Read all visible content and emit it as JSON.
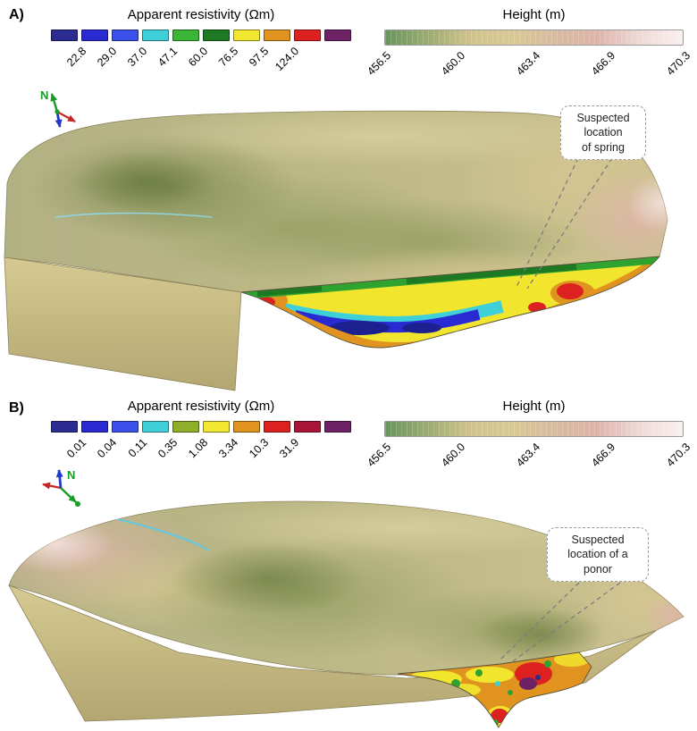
{
  "figure": {
    "panels": [
      {
        "id": "A",
        "label": "A)",
        "compass_label": "N",
        "resistivity_legend": {
          "title": "Apparent resistivity (Ωm)",
          "colors": [
            "#2b2b91",
            "#2a2ad2",
            "#3a50e8",
            "#3ecfd8",
            "#3bb535",
            "#1d7a22",
            "#f2e832",
            "#e0941f",
            "#dd2020",
            "#6e2266"
          ],
          "ticks": [
            "22.8",
            "29.0",
            "37.0",
            "47.1",
            "60.0",
            "76.5",
            "97.5",
            "124.0"
          ]
        },
        "height_legend": {
          "title": "Height (m)",
          "gradient": [
            "#68955e",
            "#9cab72",
            "#cfc28c",
            "#d9c897",
            "#d7bba2",
            "#dcb5ab",
            "#eedad6",
            "#f9f1f0"
          ],
          "ticks": [
            "456.5",
            "460.0",
            "463.4",
            "466.9",
            "470.3"
          ]
        },
        "callout": {
          "lines": [
            "Suspected",
            "location",
            "of spring"
          ]
        }
      },
      {
        "id": "B",
        "label": "B)",
        "compass_label": "N",
        "resistivity_legend": {
          "title": "Apparent resistivity (Ωm)",
          "colors": [
            "#2b2b91",
            "#2a2ad2",
            "#3a50e8",
            "#3ecfd8",
            "#8fae2a",
            "#f2e832",
            "#e0941f",
            "#dd2020",
            "#a81538",
            "#6e2266"
          ],
          "ticks": [
            "0.01",
            "0.04",
            "0.11",
            "0.35",
            "1.08",
            "3.34",
            "10.3",
            "31.9"
          ]
        },
        "height_legend": {
          "title": "Height (m)",
          "gradient": [
            "#68955e",
            "#9cab72",
            "#cfc28c",
            "#d9c897",
            "#d7bba2",
            "#dcb5ab",
            "#eedad6",
            "#f9f1f0"
          ],
          "ticks": [
            "456.5",
            "460.0",
            "463.4",
            "466.9",
            "470.3"
          ]
        },
        "callout": {
          "lines": [
            "Suspected",
            "location of a",
            "ponor"
          ]
        }
      }
    ]
  },
  "chart_data": [
    {
      "type": "heatmap",
      "panel": "A",
      "title": "Apparent resistivity (Ωm)",
      "scale": "discrete",
      "tick_labels": [
        "22.8",
        "29.0",
        "37.0",
        "47.1",
        "60.0",
        "76.5",
        "97.5",
        "124.0"
      ],
      "palette": [
        "#2b2b91",
        "#2a2ad2",
        "#3a50e8",
        "#3ecfd8",
        "#3bb535",
        "#1d7a22",
        "#f2e832",
        "#e0941f",
        "#dd2020",
        "#6e2266"
      ],
      "legend_position": "top-left"
    },
    {
      "type": "heatmap",
      "panel": "A",
      "title": "Height (m)",
      "scale": "continuous",
      "tick_labels": [
        "456.5",
        "460.0",
        "463.4",
        "466.9",
        "470.3"
      ],
      "range": [
        456.5,
        470.3
      ],
      "legend_position": "top-right"
    },
    {
      "type": "heatmap",
      "panel": "B",
      "title": "Apparent resistivity (Ωm)",
      "scale": "discrete",
      "tick_labels": [
        "0.01",
        "0.04",
        "0.11",
        "0.35",
        "1.08",
        "3.34",
        "10.3",
        "31.9"
      ],
      "palette": [
        "#2b2b91",
        "#2a2ad2",
        "#3a50e8",
        "#3ecfd8",
        "#8fae2a",
        "#f2e832",
        "#e0941f",
        "#dd2020",
        "#a81538",
        "#6e2266"
      ],
      "legend_position": "top-left"
    },
    {
      "type": "heatmap",
      "panel": "B",
      "title": "Height (m)",
      "scale": "continuous",
      "tick_labels": [
        "456.5",
        "460.0",
        "463.4",
        "466.9",
        "470.3"
      ],
      "range": [
        456.5,
        470.3
      ],
      "legend_position": "top-right"
    }
  ]
}
